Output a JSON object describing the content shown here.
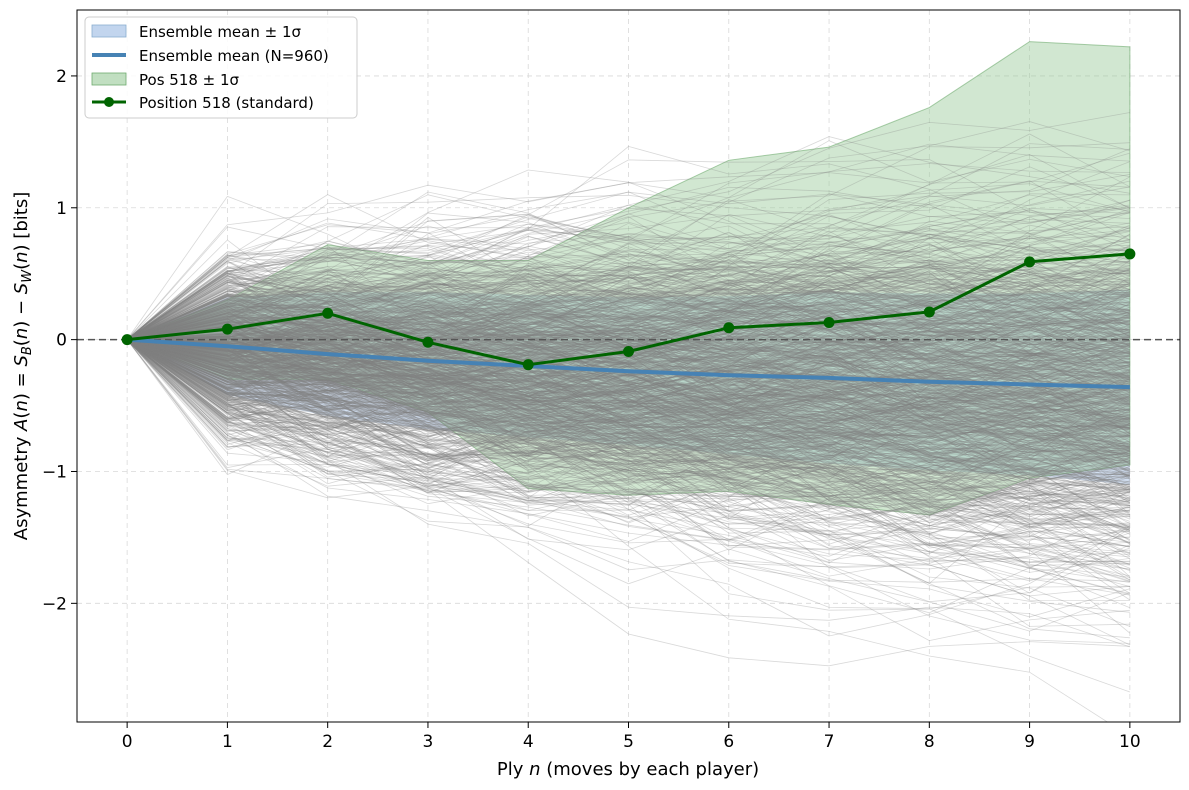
{
  "chart_data": {
    "type": "line",
    "xlabel_prefix": "Ply ",
    "xlabel_var": "n",
    "xlabel_suffix": " (moves by each player)",
    "ylabel": "Asymmetry A(n) = S_B(n) − S_W(n) [bits]",
    "ylabel_parts": {
      "a": "Asymmetry ",
      "b": "A",
      "c": "(",
      "d": "n",
      "e": ") = ",
      "f": "S",
      "g": "B",
      "h": "(",
      "i": "n",
      "j": ") − ",
      "k": "S",
      "l": "W",
      "m": "(",
      "n": "n",
      "o": ") [bits]"
    },
    "x": [
      0,
      1,
      2,
      3,
      4,
      5,
      6,
      7,
      8,
      9,
      10
    ],
    "xlim": [
      -0.5,
      10.5
    ],
    "ylim": [
      -2.9,
      2.5
    ],
    "xticks": [
      "0",
      "1",
      "2",
      "3",
      "4",
      "5",
      "6",
      "7",
      "8",
      "9",
      "10"
    ],
    "yticks": [
      {
        "value": 2,
        "label": "2"
      },
      {
        "value": 1,
        "label": "1"
      },
      {
        "value": 0,
        "label": "0"
      },
      {
        "value": -1,
        "label": "−1"
      },
      {
        "value": -2,
        "label": "−2"
      }
    ],
    "grid": true,
    "reference_line_y": 0,
    "legend_position": "top-left",
    "legend": [
      {
        "label": "Ensemble mean ± 1σ",
        "kind": "band",
        "color": "#aec7e8"
      },
      {
        "label": "Ensemble mean (N=960)",
        "kind": "line",
        "color": "#4682b4"
      },
      {
        "label": "Pos 518 ± 1σ",
        "kind": "band",
        "color": "#98c998"
      },
      {
        "label": "Position 518 (standard)",
        "kind": "marker-line",
        "color": "#006400"
      }
    ],
    "ensemble": {
      "n_trajectories": 960,
      "color": "#808080",
      "mean": [
        0,
        -0.05,
        -0.11,
        -0.16,
        -0.2,
        -0.24,
        -0.27,
        -0.29,
        -0.32,
        -0.34,
        -0.36
      ],
      "lower": [
        0,
        -0.42,
        -0.58,
        -0.68,
        -0.74,
        -0.8,
        -0.87,
        -0.94,
        -0.99,
        -1.03,
        -1.1
      ],
      "upper": [
        0,
        0.32,
        0.36,
        0.36,
        0.34,
        0.32,
        0.33,
        0.36,
        0.35,
        0.35,
        0.38
      ]
    },
    "series": [
      {
        "name": "Position 518 (standard)",
        "values": [
          0,
          0.08,
          0.2,
          -0.02,
          -0.19,
          -0.09,
          0.09,
          0.13,
          0.21,
          0.59,
          0.65
        ],
        "lower": [
          0,
          -0.3,
          -0.3,
          -0.55,
          -1.13,
          -1.18,
          -1.15,
          -1.25,
          -1.33,
          -1.05,
          -0.95
        ],
        "upper": [
          0,
          0.3,
          0.72,
          0.6,
          0.6,
          1.0,
          1.36,
          1.46,
          1.76,
          2.26,
          2.22
        ]
      }
    ]
  }
}
